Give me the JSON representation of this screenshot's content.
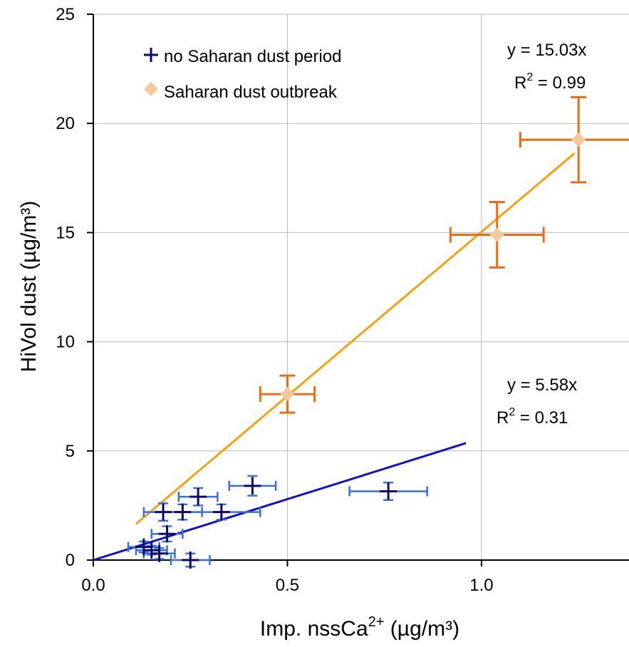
{
  "chart_data": {
    "type": "scatter",
    "title": "",
    "xlabel": "Imp. nssCa",
    "xlabel_sup": "2+",
    "xlabel_unit": "(µg/m³)",
    "ylabel": "HiVol dust (µg/m³)",
    "xlim": [
      0.0,
      1.38
    ],
    "ylim": [
      0,
      25
    ],
    "x_ticks": [
      0.0,
      0.5,
      1.0
    ],
    "x_tick_labels": [
      "0.0",
      "0.5",
      "1.0"
    ],
    "y_ticks": [
      0,
      5,
      10,
      15,
      20,
      25
    ],
    "y_tick_labels": [
      "0",
      "5",
      "10",
      "15",
      "20",
      "25"
    ],
    "grid": true,
    "legend_position": "top-left",
    "series": [
      {
        "name": "no Saharan dust period",
        "marker": "plus",
        "color": "#0b0b6e",
        "errorbar_color": "#3a6fe0",
        "points": [
          {
            "x": 0.13,
            "y": 0.6,
            "xerr": 0.04,
            "yerr": 0.25
          },
          {
            "x": 0.15,
            "y": 0.45,
            "xerr": 0.04,
            "yerr": 0.2
          },
          {
            "x": 0.17,
            "y": 0.3,
            "xerr": 0.04,
            "yerr": 0.25
          },
          {
            "x": 0.18,
            "y": 2.2,
            "xerr": 0.05,
            "yerr": 0.4
          },
          {
            "x": 0.19,
            "y": 1.2,
            "xerr": 0.04,
            "yerr": 0.35
          },
          {
            "x": 0.23,
            "y": 2.2,
            "xerr": 0.05,
            "yerr": 0.35
          },
          {
            "x": 0.25,
            "y": 0.0,
            "xerr": 0.05,
            "yerr": 0.3
          },
          {
            "x": 0.27,
            "y": 2.9,
            "xerr": 0.05,
            "yerr": 0.4
          },
          {
            "x": 0.33,
            "y": 2.2,
            "xerr": 0.1,
            "yerr": 0.35
          },
          {
            "x": 0.41,
            "y": 3.4,
            "xerr": 0.06,
            "yerr": 0.45
          },
          {
            "x": 0.76,
            "y": 3.15,
            "xerr": 0.1,
            "yerr": 0.4
          }
        ],
        "fit": {
          "slope": 5.58,
          "x_range": [
            0.0,
            0.96
          ],
          "color": "#1111cc",
          "equation": "y = 5.58x",
          "r2_label": "R",
          "r2_sup": "2",
          "r2_value": " = 0.31"
        }
      },
      {
        "name": "Saharan dust outbreak",
        "marker": "diamond",
        "color": "#f9c79a",
        "errorbar_color": "#f06a10",
        "points": [
          {
            "x": 0.5,
            "y": 7.6,
            "xerr": 0.07,
            "yerr": 0.85
          },
          {
            "x": 1.04,
            "y": 14.9,
            "xerr": 0.12,
            "yerr": 1.5
          },
          {
            "x": 1.25,
            "y": 19.25,
            "xerr": 0.15,
            "yerr": 1.95
          }
        ],
        "fit": {
          "slope": 15.03,
          "x_range": [
            0.11,
            1.24
          ],
          "color": "#f5a20f",
          "equation": "y = 15.03x",
          "r2_label": "R",
          "r2_sup": "2",
          "r2_value": " = 0.99"
        }
      }
    ]
  }
}
